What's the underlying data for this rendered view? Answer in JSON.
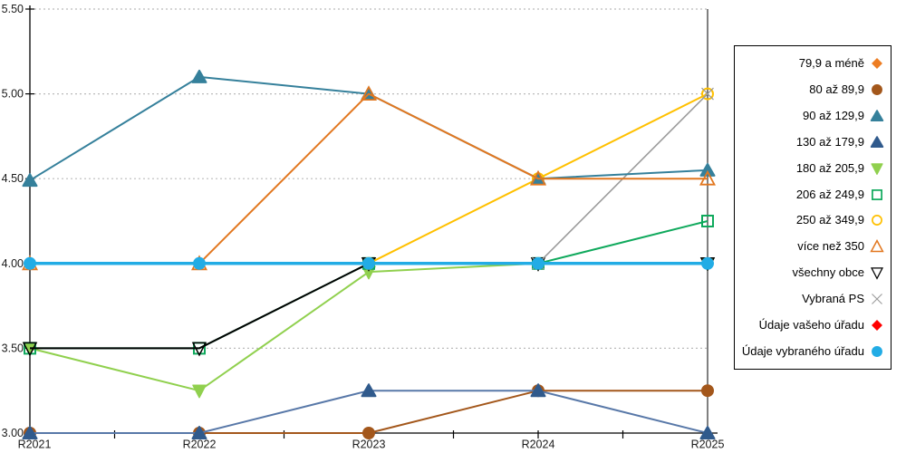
{
  "chart_data": {
    "type": "line",
    "categories": [
      "R2021",
      "R2022",
      "R2023",
      "R2024",
      "R2025"
    ],
    "title": "",
    "xlabel": "",
    "ylabel": "",
    "ylim": [
      3.0,
      5.5
    ],
    "ytick_step": 0.5,
    "y_tick_labels": [
      "5.50",
      "5.00",
      "4.50",
      "4.00",
      "3.50",
      "3.00"
    ],
    "grid": "horizontal-dotted",
    "legend_position": "right-box",
    "series": [
      {
        "name": "79,9 a méně",
        "marker": "diamond",
        "color": "#ED7D22",
        "line_width": 2,
        "values": [
          null,
          null,
          null,
          null,
          null
        ]
      },
      {
        "name": "80 až 89,9",
        "marker": "circle",
        "color": "#A3571B",
        "line_width": 2,
        "values": [
          3.0,
          3.0,
          3.0,
          3.25,
          3.25
        ]
      },
      {
        "name": "90 až 129,9",
        "marker": "triangle-up",
        "color": "#35809B",
        "line_width": 2,
        "values": [
          4.49,
          5.1,
          5.0,
          4.5,
          4.55
        ]
      },
      {
        "name": "130 až 179,9",
        "marker": "triangle-up",
        "color": "#305A8C",
        "line_color": "#5878A8",
        "line_width": 2,
        "values": [
          3.0,
          3.0,
          3.25,
          3.25,
          3.0
        ]
      },
      {
        "name": "180 až 205,9",
        "marker": "triangle-down",
        "color": "#90D04E",
        "line_width": 2,
        "values": [
          3.5,
          3.25,
          3.95,
          4.0,
          4.0
        ]
      },
      {
        "name": "206 až 249,9",
        "marker": "square-open",
        "color": "#0FA95C",
        "line_width": 2,
        "values": [
          3.5,
          3.5,
          4.0,
          4.0,
          4.25
        ]
      },
      {
        "name": "250 až 349,9",
        "marker": "circle-open",
        "color": "#FFC000",
        "line_width": 2,
        "values": [
          null,
          null,
          4.0,
          4.5,
          5.0
        ]
      },
      {
        "name": "více než 350",
        "marker": "triangle-up-open",
        "color": "#E2771F",
        "line_width": 2,
        "values": [
          4.0,
          4.0,
          5.0,
          4.5,
          4.5
        ]
      },
      {
        "name": "všechny obce",
        "marker": "triangle-down-open",
        "color": "#000000",
        "line_width": 2,
        "values": [
          3.5,
          3.5,
          4.0,
          4.0,
          4.0
        ]
      },
      {
        "name": "Vybraná PS",
        "marker": "x",
        "color": "#9B9B9B",
        "line_width": 1.6,
        "values": [
          null,
          null,
          null,
          4.0,
          5.0
        ]
      },
      {
        "name": "Údaje vašeho úřadu",
        "marker": "diamond",
        "color": "#FF0000",
        "line_width": 2,
        "values": [
          null,
          null,
          null,
          null,
          null
        ]
      },
      {
        "name": "Údaje vybraného úřadu",
        "marker": "circle",
        "color": "#22ACE5",
        "line_width": 3.5,
        "values": [
          4.0,
          4.0,
          4.0,
          4.0,
          4.0
        ]
      }
    ],
    "draw_order": [
      4,
      5,
      8,
      6,
      9,
      1,
      3,
      2,
      7,
      11
    ],
    "axis_color": "#000000",
    "grid_color": "#BBBBBB",
    "tick_label_color": "#1A1A1A"
  }
}
